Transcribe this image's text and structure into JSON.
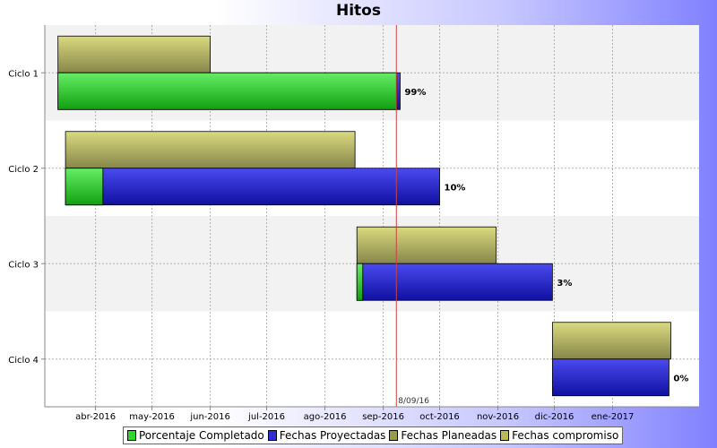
{
  "chart_data": {
    "type": "gantt",
    "title": "Hitos",
    "categories": [
      "Ciclo 1",
      "Ciclo 2",
      "Ciclo 3",
      "Ciclo 4"
    ],
    "x_tick_labels": [
      "abr-2016",
      "may-2016",
      "jun-2016",
      "jul-2016",
      "ago-2016",
      "sep-2016",
      "oct-2016",
      "nov-2016",
      "dic-2016",
      "ene-2017"
    ],
    "xlim": [
      "2016-03-05",
      "2017-02-16"
    ],
    "series": [
      {
        "name": "Fechas compromiso",
        "color": "#b9b95a",
        "tasks": [
          {
            "category": "Ciclo 1",
            "start": "2016-03-12",
            "end": "2016-06-01"
          },
          {
            "category": "Ciclo 2",
            "start": "2016-03-16",
            "end": "2016-08-17"
          },
          {
            "category": "Ciclo 3",
            "start": "2016-08-18",
            "end": "2016-10-31"
          },
          {
            "category": "Ciclo 4",
            "start": "2016-11-30",
            "end": "2017-02-01"
          }
        ]
      },
      {
        "name": "Fechas Proyectadas",
        "color": "#2e2ed8",
        "tasks": [
          {
            "category": "Ciclo 1",
            "start": "2016-03-12",
            "end": "2016-09-10",
            "label": "99%"
          },
          {
            "category": "Ciclo 2",
            "start": "2016-03-16",
            "end": "2016-10-01",
            "label": "10%"
          },
          {
            "category": "Ciclo 3",
            "start": "2016-08-18",
            "end": "2016-11-30",
            "label": "3%"
          },
          {
            "category": "Ciclo 4",
            "start": "2016-11-30",
            "end": "2017-01-31",
            "label": "0%"
          }
        ]
      },
      {
        "name": "Porcentaje Completado",
        "color": "#2ed82e",
        "values": [
          0.99,
          0.1,
          0.03,
          0.0
        ]
      },
      {
        "name": "Fechas Planeadas",
        "color": "#9a9a4a"
      }
    ],
    "today_marker": {
      "date": "2016-09-08",
      "label": "8/09/16",
      "color": "#d04040"
    },
    "grid": true,
    "legend": "bottom"
  },
  "legend": [
    {
      "label": "Porcentaje Completado",
      "color": "#2ed82e"
    },
    {
      "label": "Fechas Proyectadas",
      "color": "#2e2ed8"
    },
    {
      "label": "Fechas Planeadas",
      "color": "#9a9a4a"
    },
    {
      "label": "Fechas compromiso",
      "color": "#b9b95a"
    }
  ]
}
